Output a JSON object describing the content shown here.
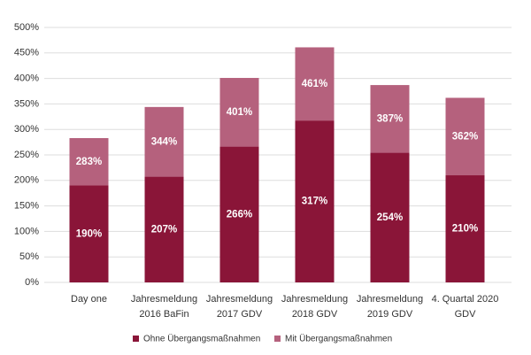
{
  "chart_data": {
    "type": "bar",
    "categories": [
      [
        "Day one"
      ],
      [
        "Jahresmeldung",
        "2016 BaFin"
      ],
      [
        "Jahresmeldung",
        "2017 GDV"
      ],
      [
        "Jahresmeldung",
        "2018 GDV"
      ],
      [
        "Jahresmeldung",
        "2019 GDV"
      ],
      [
        "4. Quartal 2020",
        "GDV"
      ]
    ],
    "series": [
      {
        "name": "Mit Übergangsmaßnahmen",
        "color": "#b5617d",
        "values": [
          283,
          344,
          401,
          461,
          387,
          362
        ],
        "value_labels": [
          "283%",
          "344%",
          "401%",
          "461%",
          "387%",
          "362%"
        ]
      },
      {
        "name": "Ohne Übergangsmaßnahmen",
        "color": "#8a1538",
        "values": [
          190,
          207,
          266,
          317,
          254,
          210
        ],
        "value_labels": [
          "190%",
          "207%",
          "266%",
          "317%",
          "254%",
          "210%"
        ]
      }
    ],
    "ylim": [
      0,
      500
    ],
    "yticks": [
      {
        "value": 0,
        "label": "0%"
      },
      {
        "value": 50,
        "label": "50%"
      },
      {
        "value": 100,
        "label": "100%"
      },
      {
        "value": 150,
        "label": "150%"
      },
      {
        "value": 200,
        "label": "200%"
      },
      {
        "value": 250,
        "label": "250%"
      },
      {
        "value": 300,
        "label": "300%"
      },
      {
        "value": 350,
        "label": "350%"
      },
      {
        "value": 400,
        "label": "400%"
      },
      {
        "value": 450,
        "label": "450%"
      },
      {
        "value": 500,
        "label": "500%"
      }
    ],
    "grid": true,
    "legend": "bottom"
  }
}
